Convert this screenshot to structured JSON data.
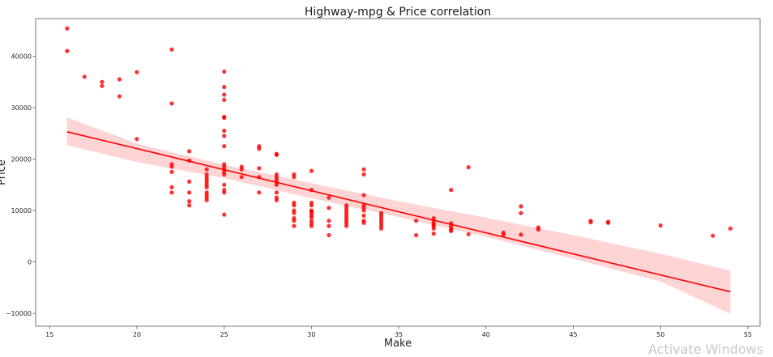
{
  "chart_data": {
    "type": "scatter",
    "title": "Highway-mpg & Price correlation",
    "xlabel": "Make",
    "ylabel": "Price",
    "xlim": [
      14.2,
      55.7
    ],
    "ylim": [
      -12500,
      47300
    ],
    "xticks": [
      15,
      20,
      25,
      30,
      35,
      40,
      45,
      50,
      55
    ],
    "yticks": [
      -10000,
      0,
      10000,
      20000,
      30000,
      40000
    ],
    "xtick_labels": [
      "15",
      "20",
      "25",
      "30",
      "35",
      "40",
      "45",
      "50",
      "55"
    ],
    "ytick_labels": [
      "−10000",
      "0",
      "10000",
      "20000",
      "30000",
      "40000"
    ],
    "grid": false,
    "point_color": "#ff0000",
    "line_color": "#ff0000",
    "band_color": "#ffcccc",
    "points": [
      [
        16,
        45400
      ],
      [
        16,
        41000
      ],
      [
        17,
        36000
      ],
      [
        18,
        35000
      ],
      [
        18,
        34200
      ],
      [
        19,
        35500
      ],
      [
        19,
        32200
      ],
      [
        20,
        36900
      ],
      [
        20,
        23900
      ],
      [
        22,
        41300
      ],
      [
        22,
        30800
      ],
      [
        22,
        19000
      ],
      [
        22,
        18500
      ],
      [
        22,
        17500
      ],
      [
        22,
        14500
      ],
      [
        22,
        13500
      ],
      [
        23,
        21500
      ],
      [
        23,
        19700
      ],
      [
        23,
        15600
      ],
      [
        23,
        13500
      ],
      [
        23,
        11800
      ],
      [
        23,
        11000
      ],
      [
        24,
        18000
      ],
      [
        24,
        17000
      ],
      [
        24,
        16500
      ],
      [
        24,
        16000
      ],
      [
        24,
        15500
      ],
      [
        24,
        15000
      ],
      [
        24,
        14500
      ],
      [
        24,
        13500
      ],
      [
        24,
        13000
      ],
      [
        24,
        12500
      ],
      [
        24,
        12000
      ],
      [
        25,
        37000
      ],
      [
        25,
        34000
      ],
      [
        25,
        32500
      ],
      [
        25,
        31500
      ],
      [
        25,
        28200
      ],
      [
        25,
        28000
      ],
      [
        25,
        25500
      ],
      [
        25,
        24500
      ],
      [
        25,
        22500
      ],
      [
        25,
        19000
      ],
      [
        25,
        18500
      ],
      [
        25,
        18000
      ],
      [
        25,
        17500
      ],
      [
        25,
        17000
      ],
      [
        25,
        15000
      ],
      [
        25,
        14000
      ],
      [
        25,
        13500
      ],
      [
        25,
        9200
      ],
      [
        26,
        18500
      ],
      [
        26,
        18000
      ],
      [
        26,
        16500
      ],
      [
        27,
        22500
      ],
      [
        27,
        22000
      ],
      [
        27,
        18200
      ],
      [
        27,
        16500
      ],
      [
        27,
        13500
      ],
      [
        28,
        21000
      ],
      [
        28,
        20800
      ],
      [
        28,
        17000
      ],
      [
        28,
        16500
      ],
      [
        28,
        16000
      ],
      [
        28,
        15500
      ],
      [
        28,
        15000
      ],
      [
        28,
        13500
      ],
      [
        28,
        12500
      ],
      [
        28,
        12000
      ],
      [
        29,
        17000
      ],
      [
        29,
        16500
      ],
      [
        29,
        11500
      ],
      [
        29,
        11000
      ],
      [
        29,
        10000
      ],
      [
        29,
        9500
      ],
      [
        29,
        8500
      ],
      [
        29,
        8000
      ],
      [
        29,
        7000
      ],
      [
        30,
        17700
      ],
      [
        30,
        14000
      ],
      [
        30,
        11500
      ],
      [
        30,
        11000
      ],
      [
        30,
        10000
      ],
      [
        30,
        9800
      ],
      [
        30,
        9500
      ],
      [
        30,
        9000
      ],
      [
        30,
        8700
      ],
      [
        30,
        8000
      ],
      [
        30,
        7500
      ],
      [
        30,
        7000
      ],
      [
        31,
        12500
      ],
      [
        31,
        10500
      ],
      [
        31,
        8000
      ],
      [
        31,
        7000
      ],
      [
        31,
        5200
      ],
      [
        32,
        11000
      ],
      [
        32,
        10500
      ],
      [
        32,
        10000
      ],
      [
        32,
        9500
      ],
      [
        32,
        9000
      ],
      [
        32,
        8500
      ],
      [
        32,
        8000
      ],
      [
        32,
        7500
      ],
      [
        32,
        7000
      ],
      [
        33,
        18000
      ],
      [
        33,
        17000
      ],
      [
        33,
        13000
      ],
      [
        33,
        11000
      ],
      [
        33,
        10500
      ],
      [
        33,
        10000
      ],
      [
        33,
        9000
      ],
      [
        33,
        8000
      ],
      [
        33,
        7600
      ],
      [
        34,
        9500
      ],
      [
        34,
        9000
      ],
      [
        34,
        8500
      ],
      [
        34,
        8000
      ],
      [
        34,
        7500
      ],
      [
        34,
        7000
      ],
      [
        34,
        6500
      ],
      [
        36,
        8000
      ],
      [
        36,
        5200
      ],
      [
        37,
        8500
      ],
      [
        37,
        8000
      ],
      [
        37,
        7500
      ],
      [
        37,
        7200
      ],
      [
        37,
        7000
      ],
      [
        37,
        6500
      ],
      [
        37,
        5500
      ],
      [
        38,
        14000
      ],
      [
        38,
        7500
      ],
      [
        38,
        7000
      ],
      [
        38,
        6500
      ],
      [
        38,
        6200
      ],
      [
        38,
        6000
      ],
      [
        39,
        18400
      ],
      [
        39,
        5400
      ],
      [
        41,
        5700
      ],
      [
        41,
        5300
      ],
      [
        42,
        10800
      ],
      [
        42,
        9500
      ],
      [
        42,
        5300
      ],
      [
        43,
        6700
      ],
      [
        43,
        6300
      ],
      [
        46,
        8000
      ],
      [
        46,
        7700
      ],
      [
        47,
        7800
      ],
      [
        47,
        7600
      ],
      [
        50,
        7100
      ],
      [
        53,
        5100
      ],
      [
        54,
        6500
      ]
    ],
    "regression": {
      "x": [
        16,
        54
      ],
      "y": [
        25300,
        -5800
      ]
    },
    "confidence_band": {
      "x": [
        16,
        20,
        25,
        30,
        35,
        40,
        45,
        50,
        54
      ],
      "upper": [
        28100,
        23000,
        18900,
        15300,
        11800,
        8600,
        5200,
        1600,
        -1700
      ],
      "lower": [
        22700,
        19400,
        16300,
        12400,
        8700,
        4900,
        600,
        -3800,
        -10100
      ]
    }
  },
  "watermark": "Activate Windows"
}
